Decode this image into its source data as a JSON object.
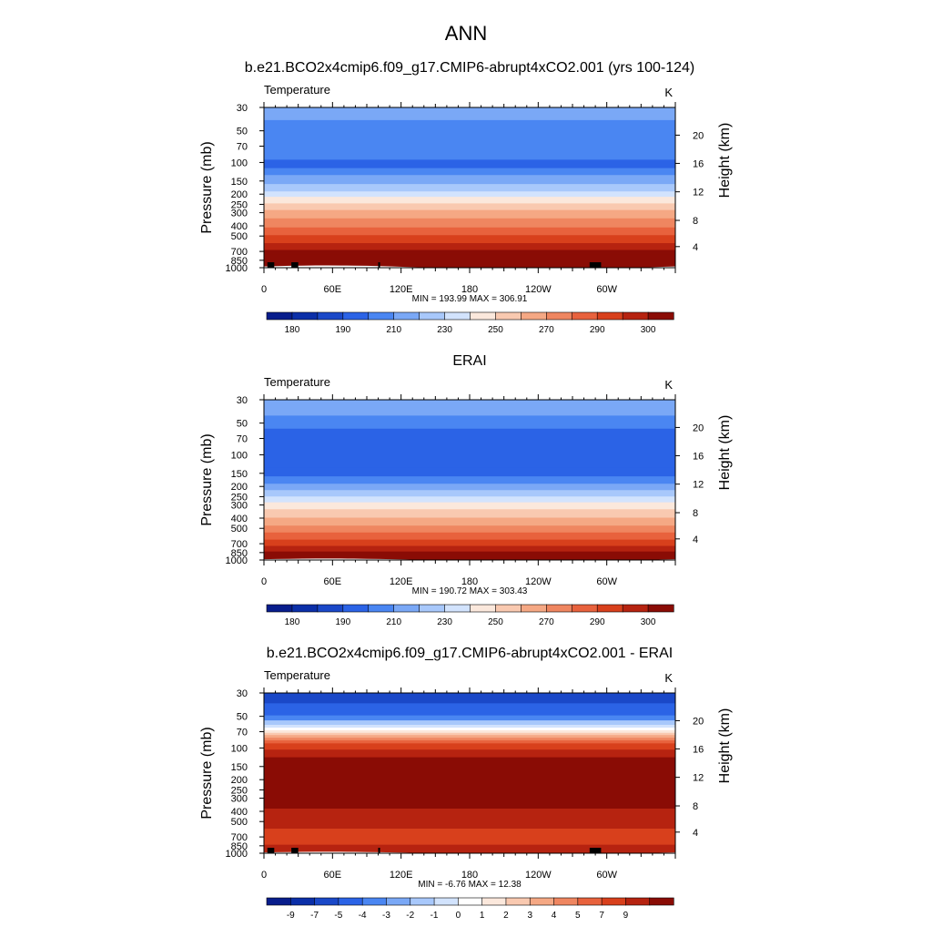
{
  "page": {
    "title": "ANN"
  },
  "colors": {
    "temperature_palette": [
      "#081d8c",
      "#0b2fa8",
      "#1a48c8",
      "#2b63e6",
      "#4a86f2",
      "#7aa8f6",
      "#a8c8fb",
      "#d2e3fd",
      "#fbe8dc",
      "#f9c9b0",
      "#f5a884",
      "#ef8660",
      "#e8623d",
      "#d8401c",
      "#b62310",
      "#8a0c05"
    ],
    "difference_palette": [
      "#081d8c",
      "#0b2fa8",
      "#1a48c8",
      "#2b63e6",
      "#4a86f2",
      "#7aa8f6",
      "#a8c8fb",
      "#d2e3fd",
      "#ffffff",
      "#fbe8dc",
      "#f9c9b0",
      "#f5a884",
      "#ef8660",
      "#e8623d",
      "#d8401c",
      "#b62310",
      "#8a0c05"
    ],
    "ground": "#000000"
  },
  "chart_data": [
    {
      "type": "heatmap",
      "title": "b.e21.BCO2x4cmip6.f09_g17.CMIP6-abrupt4xCO2.001 (yrs 100-124)",
      "variable_label": "Temperature",
      "units": "K",
      "ylabel": "Pressure (mb)",
      "y2label": "Height (km)",
      "x_ticks": [
        "0",
        "60E",
        "120E",
        "180",
        "120W",
        "60W"
      ],
      "x_tick_lons": [
        0,
        60,
        120,
        180,
        240,
        300
      ],
      "xlim": [
        0,
        360
      ],
      "y_ticks": [
        "30",
        "50",
        "70",
        "100",
        "150",
        "200",
        "250",
        "300",
        "400",
        "500",
        "700",
        "850",
        "1000"
      ],
      "y_tick_values": [
        30,
        50,
        70,
        100,
        150,
        200,
        250,
        300,
        400,
        500,
        700,
        850,
        1000
      ],
      "ylim": [
        30,
        1000
      ],
      "y_scale": "log",
      "height_ticks": [
        "20",
        "16",
        "12",
        "8",
        "4"
      ],
      "height_tick_pressures": [
        55,
        102,
        190,
        355,
        630
      ],
      "stats": "MIN = 193.99  MAX = 306.91",
      "min": 193.99,
      "max": 306.91,
      "palette_key": "temperature_palette",
      "colorbar_labels": [
        "180",
        "190",
        "210",
        "230",
        "250",
        "270",
        "290",
        "300"
      ],
      "colorbar_label_bins": [
        1,
        3,
        5,
        7,
        9,
        11,
        13,
        15
      ],
      "level_boundaries": [
        30,
        42,
        100,
        120,
        140,
        170,
        200,
        225,
        260,
        300,
        360,
        440,
        520,
        620,
        720,
        800,
        1000
      ],
      "level_colors": [
        5,
        4,
        3,
        4,
        5,
        6,
        7,
        8,
        9,
        10,
        11,
        12,
        13,
        14,
        15,
        15
      ],
      "ground_lons": [
        [
          3,
          9
        ],
        [
          24,
          30
        ],
        [
          100,
          101
        ],
        [
          285,
          295
        ]
      ]
    },
    {
      "type": "heatmap",
      "title": "ERAI",
      "variable_label": "Temperature",
      "units": "K",
      "ylabel": "Pressure (mb)",
      "y2label": "Height (km)",
      "x_ticks": [
        "0",
        "60E",
        "120E",
        "180",
        "120W",
        "60W"
      ],
      "x_tick_lons": [
        0,
        60,
        120,
        180,
        240,
        300
      ],
      "xlim": [
        0,
        360
      ],
      "y_ticks": [
        "30",
        "50",
        "70",
        "100",
        "150",
        "200",
        "250",
        "300",
        "400",
        "500",
        "700",
        "850",
        "1000"
      ],
      "y_tick_values": [
        30,
        50,
        70,
        100,
        150,
        200,
        250,
        300,
        400,
        500,
        700,
        850,
        1000
      ],
      "ylim": [
        30,
        1000
      ],
      "y_scale": "log",
      "height_ticks": [
        "20",
        "16",
        "12",
        "8",
        "4"
      ],
      "height_tick_pressures": [
        55,
        102,
        190,
        355,
        630
      ],
      "stats": "MIN = 190.72  MAX = 303.43",
      "min": 190.72,
      "max": 303.43,
      "palette_key": "temperature_palette",
      "colorbar_labels": [
        "180",
        "190",
        "210",
        "230",
        "250",
        "270",
        "290",
        "300"
      ],
      "colorbar_label_bins": [
        1,
        3,
        5,
        7,
        9,
        11,
        13,
        15
      ],
      "level_boundaries": [
        30,
        45,
        60,
        140,
        170,
        200,
        230,
        265,
        300,
        350,
        420,
        500,
        580,
        680,
        780,
        880,
        1000
      ],
      "level_colors": [
        5,
        4,
        3,
        3,
        4,
        5,
        6,
        7,
        8,
        9,
        10,
        11,
        12,
        13,
        14,
        15
      ],
      "ground_lons": []
    },
    {
      "type": "heatmap",
      "title": "b.e21.BCO2x4cmip6.f09_g17.CMIP6-abrupt4xCO2.001 - ERAI",
      "variable_label": "Temperature",
      "units": "K",
      "ylabel": "Pressure (mb)",
      "y2label": "Height (km)",
      "x_ticks": [
        "0",
        "60E",
        "120E",
        "180",
        "120W",
        "60W"
      ],
      "x_tick_lons": [
        0,
        60,
        120,
        180,
        240,
        300
      ],
      "xlim": [
        0,
        360
      ],
      "y_ticks": [
        "30",
        "50",
        "70",
        "100",
        "150",
        "200",
        "250",
        "300",
        "400",
        "500",
        "700",
        "850",
        "1000"
      ],
      "y_tick_values": [
        30,
        50,
        70,
        100,
        150,
        200,
        250,
        300,
        400,
        500,
        700,
        850,
        1000
      ],
      "ylim": [
        30,
        1000
      ],
      "y_scale": "log",
      "height_ticks": [
        "20",
        "16",
        "12",
        "8",
        "4"
      ],
      "height_tick_pressures": [
        55,
        102,
        190,
        355,
        630
      ],
      "stats": "MIN = -6.76  MAX = 12.38",
      "min": -6.76,
      "max": 12.38,
      "palette_key": "difference_palette",
      "colorbar_labels": [
        "-9",
        "-7",
        "-5",
        "-4",
        "-3",
        "-2",
        "-1",
        "0",
        "1",
        "2",
        "3",
        "4",
        "5",
        "7",
        "9"
      ],
      "colorbar_label_bins": [
        1,
        2,
        3,
        4,
        5,
        6,
        7,
        8,
        9,
        10,
        11,
        12,
        13,
        14,
        15
      ],
      "level_boundaries": [
        30,
        40,
        52,
        58,
        64,
        68,
        72,
        76,
        80,
        85,
        90,
        96,
        110,
        130,
        400,
        620,
        880,
        1000
      ],
      "level_colors": [
        2,
        3,
        4,
        6,
        7,
        8,
        9,
        10,
        11,
        12,
        13,
        14,
        15,
        16,
        15,
        14,
        15
      ],
      "ground_lons": [
        [
          3,
          9
        ],
        [
          24,
          30
        ],
        [
          100,
          101
        ],
        [
          285,
          295
        ]
      ]
    }
  ]
}
